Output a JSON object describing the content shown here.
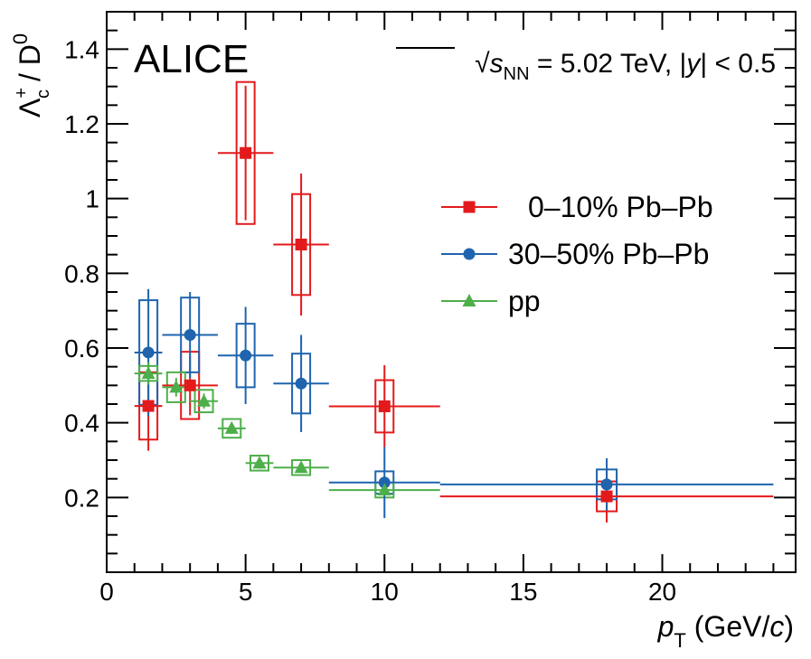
{
  "chart_data": {
    "type": "scatter",
    "experiment": "ALICE",
    "energy_prefix": "√",
    "energy_var": "s",
    "energy_sub": "NN",
    "energy_value": " = 5.02 TeV, |",
    "rapidity_var": "y",
    "rapidity_cut": "| < 0.5",
    "xlabel_var": "p",
    "xlabel_sub": "T",
    "xlabel_unit_open": " (GeV/",
    "xlabel_unit_var": "c",
    "xlabel_unit_close": ")",
    "ylabel_num": "Λ",
    "ylabel_num_sub": "c",
    "ylabel_num_sup": "+",
    "ylabel_sep": " / ",
    "ylabel_den": "D",
    "ylabel_den_sup": "0",
    "xlim": [
      0,
      24.8
    ],
    "ylim": [
      0,
      1.5
    ],
    "xticks": [
      0,
      5,
      10,
      15,
      20
    ],
    "yticks": [
      0.2,
      0.4,
      0.6,
      0.8,
      1,
      1.2,
      1.4
    ],
    "ytick_labels": [
      "0.2",
      "0.4",
      "0.6",
      "0.8",
      "1",
      "1.2",
      "1.4"
    ],
    "legend_position": "top-right",
    "series": [
      {
        "name": "0–10% Pb–Pb",
        "color": "#e31a1c",
        "marker": "square",
        "points": [
          {
            "x": 1.5,
            "xlo": 1.0,
            "xhi": 2.0,
            "y": 0.445,
            "stat": 0.12,
            "sys": 0.09
          },
          {
            "x": 3.0,
            "xlo": 2.0,
            "xhi": 4.0,
            "y": 0.5,
            "stat": 0.08,
            "sys": 0.09
          },
          {
            "x": 5.0,
            "xlo": 4.0,
            "xhi": 6.0,
            "y": 1.122,
            "stat": 0.18,
            "sys": 0.19
          },
          {
            "x": 7.0,
            "xlo": 6.0,
            "xhi": 8.0,
            "y": 0.877,
            "stat": 0.19,
            "sys": 0.135
          },
          {
            "x": 10.0,
            "xlo": 8.0,
            "xhi": 12.0,
            "y": 0.444,
            "stat": 0.11,
            "sys": 0.07
          },
          {
            "x": 18.0,
            "xlo": 12.0,
            "xhi": 24.0,
            "y": 0.203,
            "stat": 0.07,
            "sys": 0.04
          }
        ]
      },
      {
        "name": "30–50% Pb–Pb",
        "color": "#1f64ad",
        "marker": "circle",
        "points": [
          {
            "x": 1.5,
            "xlo": 1.0,
            "xhi": 2.0,
            "y": 0.588,
            "stat": 0.17,
            "sys": 0.14
          },
          {
            "x": 3.0,
            "xlo": 2.0,
            "xhi": 4.0,
            "y": 0.635,
            "stat": 0.115,
            "sys": 0.1
          },
          {
            "x": 5.0,
            "xlo": 4.0,
            "xhi": 6.0,
            "y": 0.58,
            "stat": 0.13,
            "sys": 0.085
          },
          {
            "x": 7.0,
            "xlo": 6.0,
            "xhi": 8.0,
            "y": 0.505,
            "stat": 0.13,
            "sys": 0.08
          },
          {
            "x": 10.0,
            "xlo": 8.0,
            "xhi": 12.0,
            "y": 0.24,
            "stat": 0.095,
            "sys": 0.03
          },
          {
            "x": 18.0,
            "xlo": 12.0,
            "xhi": 24.0,
            "y": 0.235,
            "stat": 0.07,
            "sys": 0.04
          }
        ]
      },
      {
        "name": "pp",
        "color": "#4daf4a",
        "marker": "triangle",
        "points": [
          {
            "x": 1.5,
            "xlo": 1.0,
            "xhi": 2.0,
            "y": 0.532,
            "stat": 0.03,
            "sys": 0.02
          },
          {
            "x": 2.5,
            "xlo": 2.0,
            "xhi": 3.0,
            "y": 0.495,
            "stat": 0.025,
            "sys": 0.04
          },
          {
            "x": 3.5,
            "xlo": 3.0,
            "xhi": 4.0,
            "y": 0.458,
            "stat": 0.02,
            "sys": 0.03
          },
          {
            "x": 4.5,
            "xlo": 4.0,
            "xhi": 5.0,
            "y": 0.385,
            "stat": 0.015,
            "sys": 0.025
          },
          {
            "x": 5.5,
            "xlo": 5.0,
            "xhi": 6.0,
            "y": 0.292,
            "stat": 0.015,
            "sys": 0.02
          },
          {
            "x": 7.0,
            "xlo": 6.0,
            "xhi": 8.0,
            "y": 0.28,
            "stat": 0.01,
            "sys": 0.02
          },
          {
            "x": 10.0,
            "xlo": 8.0,
            "xhi": 12.0,
            "y": 0.22,
            "stat": 0.01,
            "sys": 0.02
          }
        ]
      }
    ]
  }
}
